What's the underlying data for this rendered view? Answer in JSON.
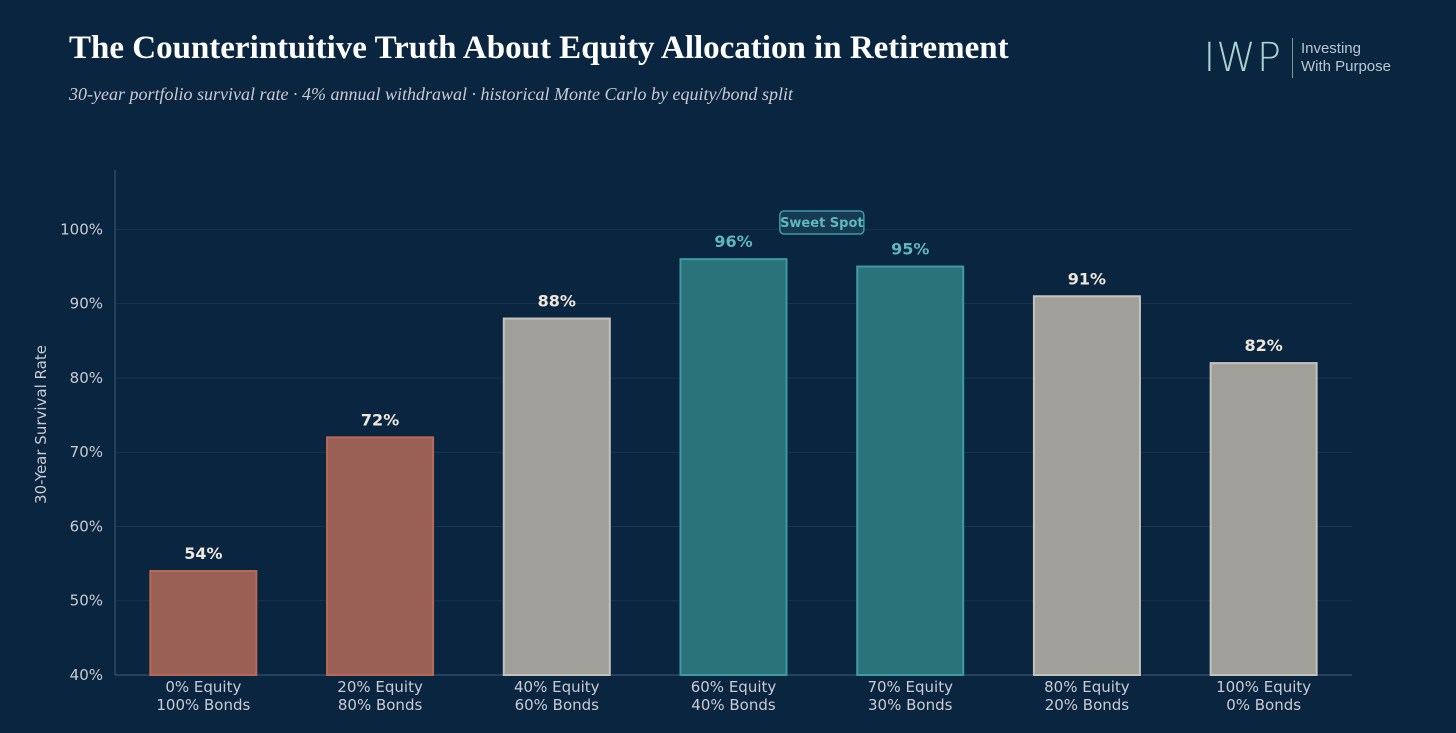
{
  "header": {
    "title": "The Counterintuitive Truth About Equity Allocation in Retirement",
    "subtitle": "30-year portfolio survival rate · 4% annual withdrawal · historical Monte Carlo by equity/bond split"
  },
  "logo": {
    "mark": "IWP",
    "line1": "Investing",
    "line2": "With Purpose"
  },
  "chart_data": {
    "type": "bar",
    "categories": [
      [
        "0% Equity",
        "100% Bonds"
      ],
      [
        "20% Equity",
        "80% Bonds"
      ],
      [
        "40% Equity",
        "60% Bonds"
      ],
      [
        "60% Equity",
        "40% Bonds"
      ],
      [
        "70% Equity",
        "30% Bonds"
      ],
      [
        "80% Equity",
        "20% Bonds"
      ],
      [
        "100% Equity",
        "0% Bonds"
      ]
    ],
    "values": [
      54,
      72,
      88,
      96,
      95,
      91,
      82
    ],
    "value_labels": [
      "54%",
      "72%",
      "88%",
      "96%",
      "95%",
      "91%",
      "82%"
    ],
    "ylabel": "30-Year Survival Rate",
    "ylim": [
      40,
      108
    ],
    "yticks": [
      40,
      50,
      60,
      70,
      80,
      90,
      100
    ],
    "ytick_labels": [
      "40%",
      "50%",
      "60%",
      "70%",
      "80%",
      "90%",
      "100%"
    ],
    "grid": true,
    "annotation": "Sweet Spot",
    "bar_groups": [
      "low",
      "low",
      "neutral",
      "sweet",
      "sweet",
      "neutral",
      "neutral"
    ],
    "colors": {
      "low_fill": "#9a5f55",
      "low_stroke": "#b86a58",
      "low_label": "#eee6dc",
      "neutral_fill": "#a09f9a",
      "neutral_stroke": "#c4c2bc",
      "neutral_label": "#eee6dc",
      "sweet_fill": "#2a737b",
      "sweet_stroke": "#3f9aa2",
      "sweet_label": "#5fb8bc",
      "grid": "#1a3450",
      "axis": "#3e5a78",
      "background": "#0a2540"
    }
  }
}
